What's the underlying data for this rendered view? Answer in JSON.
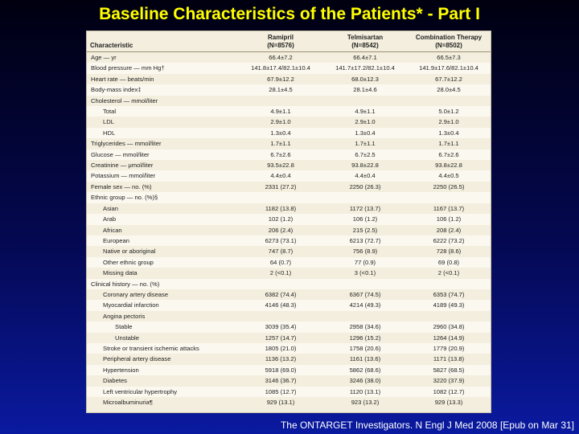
{
  "slide": {
    "title": "Baseline Characteristics of the Patients* - Part I",
    "citation": "The ONTARGET Investigators. N Engl J Med 2008 [Epub on Mar 31]"
  },
  "table": {
    "columns": [
      {
        "name": "Characteristic",
        "n": ""
      },
      {
        "name": "Ramipril",
        "n": "(N=8576)"
      },
      {
        "name": "Telmisartan",
        "n": "(N=8542)"
      },
      {
        "name": "Combination Therapy",
        "n": "(N=8502)"
      }
    ],
    "rows": [
      {
        "label": "Age — yr",
        "level": 0,
        "values": [
          "66.4±7.2",
          "66.4±7.1",
          "66.5±7.3"
        ]
      },
      {
        "label": "Blood pressure — mm Hg†",
        "level": 0,
        "values": [
          "141.8±17.4/82.1±10.4",
          "141.7±17.2/82.1±10.4",
          "141.9±17.6/82.1±10.4"
        ]
      },
      {
        "label": "Heart rate — beats/min",
        "level": 0,
        "values": [
          "67.9±12.2",
          "68.0±12.3",
          "67.7±12.2"
        ]
      },
      {
        "label": "Body-mass index‡",
        "level": 0,
        "values": [
          "28.1±4.5",
          "28.1±4.6",
          "28.0±4.5"
        ]
      },
      {
        "label": "Cholesterol — mmol/liter",
        "level": 0,
        "values": [
          "",
          "",
          ""
        ]
      },
      {
        "label": "Total",
        "level": 1,
        "values": [
          "4.9±1.1",
          "4.9±1.1",
          "5.0±1.2"
        ]
      },
      {
        "label": "LDL",
        "level": 1,
        "values": [
          "2.9±1.0",
          "2.9±1.0",
          "2.9±1.0"
        ]
      },
      {
        "label": "HDL",
        "level": 1,
        "values": [
          "1.3±0.4",
          "1.3±0.4",
          "1.3±0.4"
        ]
      },
      {
        "label": "Triglycerides — mmol/liter",
        "level": 0,
        "values": [
          "1.7±1.1",
          "1.7±1.1",
          "1.7±1.1"
        ]
      },
      {
        "label": "Glucose — mmol/liter",
        "level": 0,
        "values": [
          "6.7±2.6",
          "6.7±2.5",
          "6.7±2.6"
        ]
      },
      {
        "label": "Creatinine — μmol/liter",
        "level": 0,
        "values": [
          "93.5±22.8",
          "93.8±22.8",
          "93.8±22.8"
        ]
      },
      {
        "label": "Potassium — mmol/liter",
        "level": 0,
        "values": [
          "4.4±0.4",
          "4.4±0.4",
          "4.4±0.5"
        ]
      },
      {
        "label": "Female sex — no. (%)",
        "level": 0,
        "values": [
          "2331 (27.2)",
          "2250 (26.3)",
          "2250 (26.5)"
        ]
      },
      {
        "label": "Ethnic group — no. (%)§",
        "level": 0,
        "values": [
          "",
          "",
          ""
        ]
      },
      {
        "label": "Asian",
        "level": 1,
        "values": [
          "1182 (13.8)",
          "1172 (13.7)",
          "1167 (13.7)"
        ]
      },
      {
        "label": "Arab",
        "level": 1,
        "values": [
          "102 (1.2)",
          "106 (1.2)",
          "106 (1.2)"
        ]
      },
      {
        "label": "African",
        "level": 1,
        "values": [
          "206 (2.4)",
          "215 (2.5)",
          "208 (2.4)"
        ]
      },
      {
        "label": "European",
        "level": 1,
        "values": [
          "6273 (73.1)",
          "6213 (72.7)",
          "6222 (73.2)"
        ]
      },
      {
        "label": "Native or aboriginal",
        "level": 1,
        "values": [
          "747 (8.7)",
          "756 (8.9)",
          "728 (8.6)"
        ]
      },
      {
        "label": "Other ethnic group",
        "level": 1,
        "values": [
          "64 (0.7)",
          "77 (0.9)",
          "69 (0.8)"
        ]
      },
      {
        "label": "Missing data",
        "level": 1,
        "values": [
          "2 (<0.1)",
          "3 (<0.1)",
          "2 (<0.1)"
        ]
      },
      {
        "label": "Clinical history — no. (%)",
        "level": 0,
        "values": [
          "",
          "",
          ""
        ]
      },
      {
        "label": "Coronary artery disease",
        "level": 1,
        "values": [
          "6382 (74.4)",
          "6367 (74.5)",
          "6353 (74.7)"
        ]
      },
      {
        "label": "Myocardial infarction",
        "level": 1,
        "values": [
          "4146 (48.3)",
          "4214 (49.3)",
          "4189 (49.3)"
        ]
      },
      {
        "label": "Angina pectoris",
        "level": 1,
        "values": [
          "",
          "",
          ""
        ]
      },
      {
        "label": "Stable",
        "level": 2,
        "values": [
          "3039 (35.4)",
          "2958 (34.6)",
          "2960 (34.8)"
        ]
      },
      {
        "label": "Unstable",
        "level": 2,
        "values": [
          "1257 (14.7)",
          "1296 (15.2)",
          "1264 (14.9)"
        ]
      },
      {
        "label": "Stroke or transient ischemic attacks",
        "level": 1,
        "values": [
          "1805 (21.0)",
          "1758 (20.6)",
          "1779 (20.9)"
        ]
      },
      {
        "label": "Peripheral artery disease",
        "level": 1,
        "values": [
          "1136 (13.2)",
          "1161 (13.6)",
          "1171 (13.8)"
        ]
      },
      {
        "label": "Hypertension",
        "level": 1,
        "values": [
          "5918 (69.0)",
          "5862 (68.6)",
          "5827 (68.5)"
        ]
      },
      {
        "label": "Diabetes",
        "level": 1,
        "values": [
          "3146 (36.7)",
          "3246 (38.0)",
          "3220 (37.9)"
        ]
      },
      {
        "label": "Left ventricular hypertrophy",
        "level": 1,
        "values": [
          "1085 (12.7)",
          "1120 (13.1)",
          "1082 (12.7)"
        ]
      },
      {
        "label": "Microalbuminuria¶",
        "level": 1,
        "values": [
          "929 (13.1)",
          "923 (13.2)",
          "929 (13.3)"
        ]
      }
    ]
  }
}
